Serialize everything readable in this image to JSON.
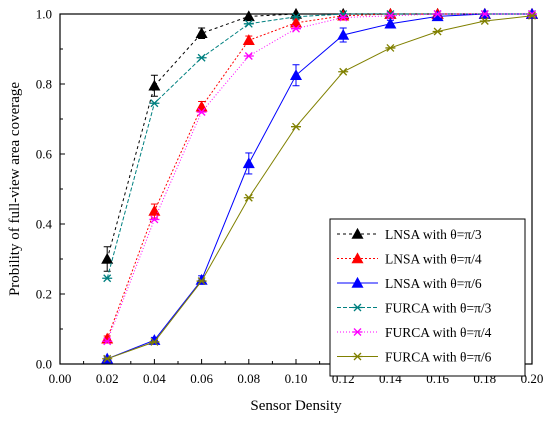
{
  "chart_data": {
    "type": "line",
    "title": "",
    "xlabel": "Sensor Density",
    "ylabel": "Probility of full-view area coverage",
    "xlim": [
      0.0,
      0.2
    ],
    "ylim": [
      0.0,
      1.0
    ],
    "xticks": [
      "0.00",
      "0.02",
      "0.04",
      "0.06",
      "0.08",
      "0.10",
      "0.12",
      "0.14",
      "0.16",
      "0.18",
      "0.20"
    ],
    "yticks": [
      "0.0",
      "0.2",
      "0.4",
      "0.6",
      "0.8",
      "1.0"
    ],
    "grid": false,
    "legend_position": "bottom-right",
    "x": [
      0.02,
      0.04,
      0.06,
      0.08,
      0.1,
      0.12,
      0.14,
      0.16,
      0.18,
      0.2
    ],
    "series": [
      {
        "name": "LNSA with θ=π/3",
        "color": "#000000",
        "dash": "3,3",
        "marker": "triangle",
        "values": [
          0.3,
          0.795,
          0.945,
          0.993,
          1.0,
          1.0,
          1.0,
          1.0,
          1.0,
          1.0
        ],
        "errors": [
          0.035,
          0.03,
          0.015,
          0.008,
          0.0,
          0.0,
          0.0,
          0.0,
          0.0,
          0.0
        ]
      },
      {
        "name": "LNSA with θ=π/4",
        "color": "#ff0000",
        "dash": "2,2",
        "marker": "triangle",
        "values": [
          0.072,
          0.437,
          0.735,
          0.925,
          0.975,
          0.995,
          1.0,
          1.0,
          1.0,
          1.0
        ],
        "errors": [
          0.008,
          0.02,
          0.015,
          0.012,
          0.008,
          0.0,
          0.0,
          0.0,
          0.0,
          0.0
        ]
      },
      {
        "name": "LNSA with θ=π/6",
        "color": "#0000ff",
        "dash": "",
        "marker": "triangle",
        "values": [
          0.015,
          0.068,
          0.24,
          0.573,
          0.825,
          0.94,
          0.972,
          0.993,
          1.0,
          1.0
        ],
        "errors": [
          0.005,
          0.008,
          0.012,
          0.03,
          0.03,
          0.02,
          0.01,
          0.005,
          0.0,
          0.0
        ]
      },
      {
        "name": "FURCA with θ=π/3",
        "color": "#008080",
        "dash": "4,2",
        "marker": "asterisk",
        "values": [
          0.245,
          0.745,
          0.875,
          0.972,
          0.992,
          1.0,
          1.0,
          1.0,
          1.0,
          1.0
        ]
      },
      {
        "name": "FURCA with θ=π/4",
        "color": "#ff00ff",
        "dash": "1,2",
        "marker": "asterisk",
        "values": [
          0.065,
          0.413,
          0.72,
          0.88,
          0.958,
          0.99,
          0.995,
          1.0,
          1.0,
          1.0
        ]
      },
      {
        "name": "FURCA with θ=π/6",
        "color": "#808000",
        "dash": "",
        "marker": "asterisk",
        "values": [
          0.015,
          0.063,
          0.237,
          0.475,
          0.678,
          0.835,
          0.903,
          0.95,
          0.98,
          0.995
        ]
      }
    ]
  }
}
